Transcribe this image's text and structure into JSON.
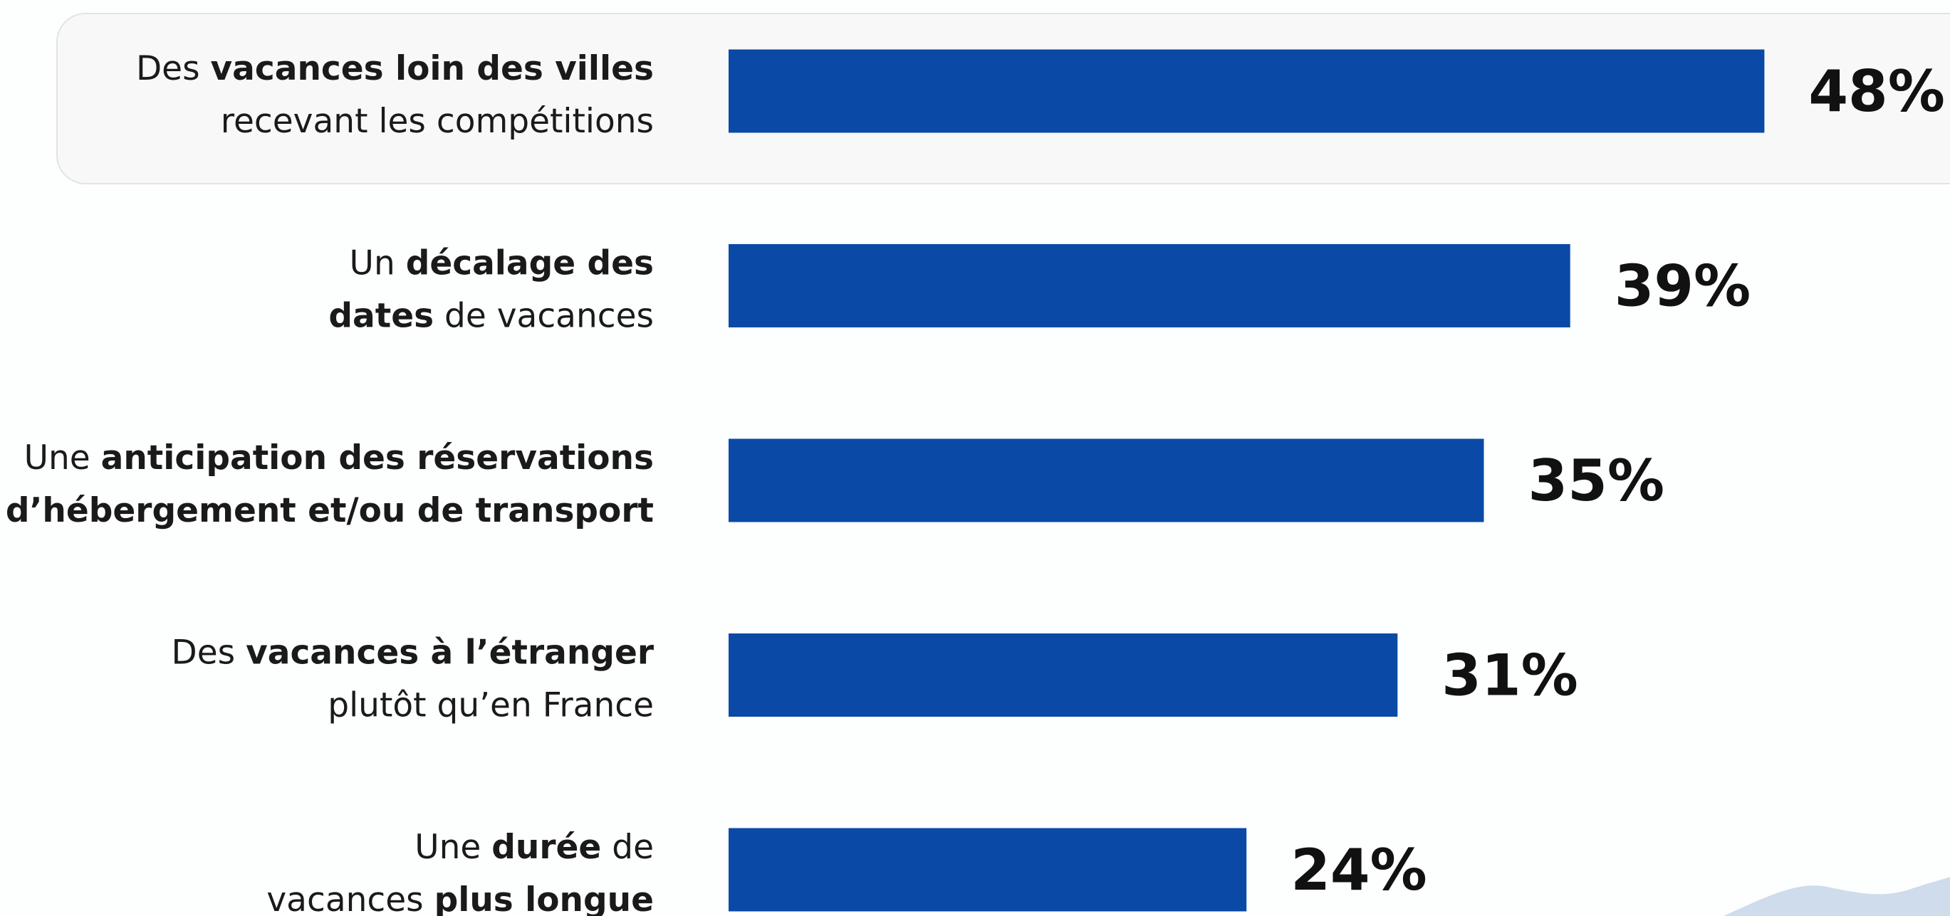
{
  "chart_data": {
    "type": "bar",
    "orientation": "horizontal",
    "color": "#0a4aa6",
    "categories": [
      {
        "lines": [
          [
            {
              "text": "Des "
            },
            {
              "text": "vacances loin des villes",
              "bold": true
            }
          ],
          [
            {
              "text": "recevant les compétitions"
            }
          ]
        ]
      },
      {
        "lines": [
          [
            {
              "text": "Un "
            },
            {
              "text": "décalage des",
              "bold": true
            }
          ],
          [
            {
              "text": "dates",
              "bold": true
            },
            {
              "text": " de vacances"
            }
          ]
        ]
      },
      {
        "lines": [
          [
            {
              "text": "Une "
            },
            {
              "text": "anticipation des réservations",
              "bold": true
            }
          ],
          [
            {
              "text": "d’hébergement et/ou de transport",
              "bold": true
            }
          ]
        ]
      },
      {
        "lines": [
          [
            {
              "text": "Des "
            },
            {
              "text": "vacances à l’étranger",
              "bold": true
            }
          ],
          [
            {
              "text": "plutôt qu’en France"
            }
          ]
        ]
      },
      {
        "lines": [
          [
            {
              "text": "Une "
            },
            {
              "text": "durée",
              "bold": true
            },
            {
              "text": " de"
            }
          ],
          [
            {
              "text": "vacances "
            },
            {
              "text": "plus longue",
              "bold": true
            }
          ]
        ]
      }
    ],
    "values": [
      48,
      39,
      35,
      31,
      24
    ],
    "value_labels": [
      "48%",
      "39%",
      "35%",
      "31%",
      "24%"
    ]
  }
}
